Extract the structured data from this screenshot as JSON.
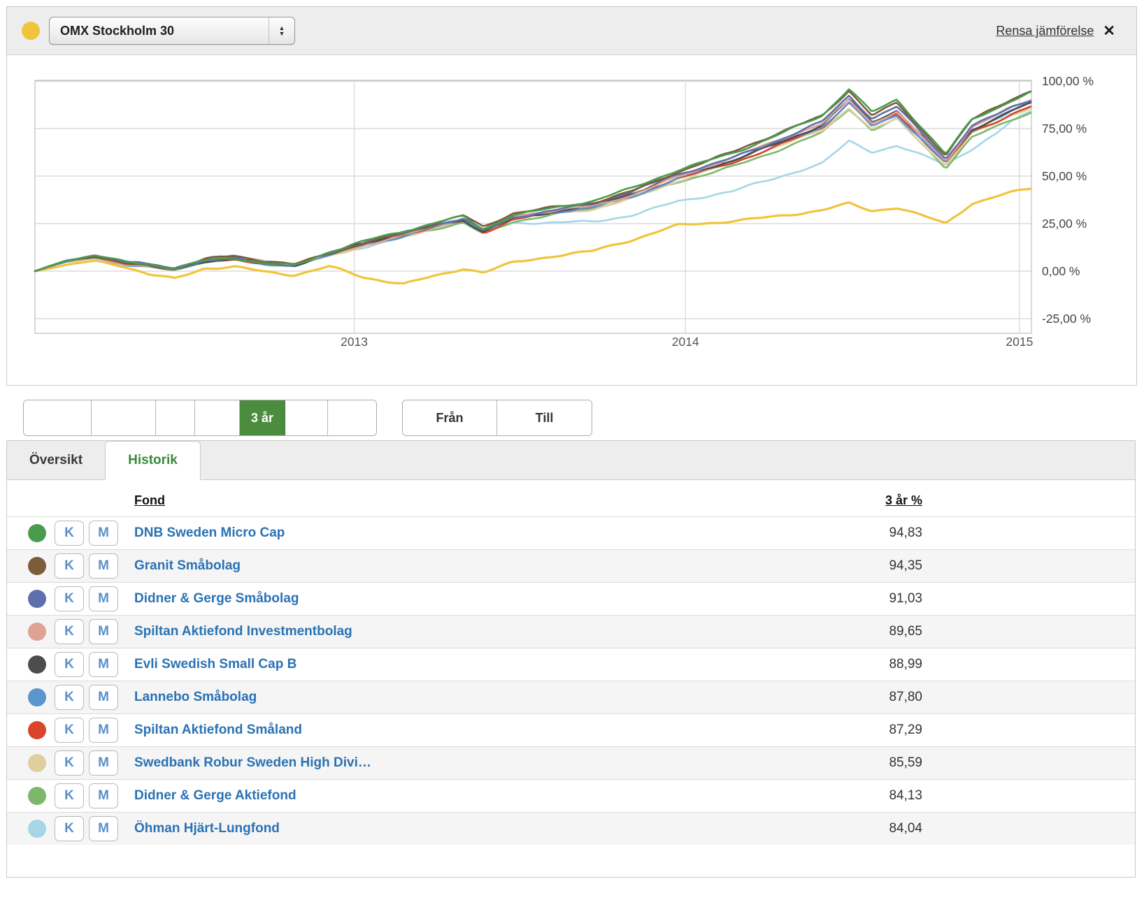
{
  "header": {
    "index_color": "#f0c43c",
    "index_select_value": "OMX Stockholm 30",
    "clear_comparison_label": "Rensa jämförelse",
    "close_icon": "✕"
  },
  "chart_data": {
    "type": "line",
    "y_ticks": [
      {
        "v": 100,
        "label": "100,00 %"
      },
      {
        "v": 75,
        "label": "75,00 %"
      },
      {
        "v": 50,
        "label": "50,00 %"
      },
      {
        "v": 25,
        "label": "25,00 %"
      },
      {
        "v": 0,
        "label": "0,00 %"
      },
      {
        "v": -25,
        "label": "-25,00 %"
      }
    ],
    "x_ticks": [
      {
        "f": 0.3204,
        "label": "2013"
      },
      {
        "f": 0.6528,
        "label": "2014"
      },
      {
        "f": 0.988,
        "label": "2015"
      }
    ],
    "ylim": [
      -32,
      106
    ],
    "x_anchors": [
      0,
      0.03,
      0.06,
      0.09,
      0.115,
      0.14,
      0.17,
      0.2,
      0.23,
      0.26,
      0.295,
      0.33,
      0.37,
      0.405,
      0.43,
      0.45,
      0.48,
      0.52,
      0.56,
      0.6,
      0.645,
      0.7,
      0.74,
      0.79,
      0.817,
      0.84,
      0.865,
      0.914,
      0.94,
      0.965,
      0.98,
      1.0
    ],
    "base_curve": [
      0,
      5,
      7.5,
      4,
      3,
      1,
      5.5,
      7,
      4.5,
      3,
      9,
      14,
      19,
      24,
      27,
      21,
      28,
      31,
      34,
      40,
      49,
      58,
      66,
      76,
      89,
      77,
      83,
      57,
      74,
      80,
      84,
      88
    ],
    "base_end": 88,
    "lag_profile": [
      0,
      0,
      0,
      0,
      0,
      0,
      0,
      0,
      0,
      0,
      0,
      0,
      0,
      0,
      0,
      0,
      2,
      4,
      6,
      8,
      10,
      14,
      15,
      16,
      16,
      10,
      13,
      -2,
      7,
      5,
      2,
      0
    ],
    "series": [
      {
        "name": "DNB Sweden Micro Cap",
        "color": "#4a9b4e",
        "end_value": 94.83
      },
      {
        "name": "Granit Småbolag",
        "color": "#7d5c3a",
        "end_value": 94.35
      },
      {
        "name": "Didner & Gerge Småbolag",
        "color": "#5f6fae",
        "end_value": 91.03
      },
      {
        "name": "Spiltan Aktiefond Investmentbolag",
        "color": "#dfa294",
        "end_value": 89.65
      },
      {
        "name": "Evli Swedish Small Cap B",
        "color": "#4d4d4d",
        "end_value": 88.99
      },
      {
        "name": "Lannebo Småbolag",
        "color": "#5b94cf",
        "end_value": 87.8
      },
      {
        "name": "Spiltan Aktiefond Småland",
        "color": "#d9442a",
        "end_value": 87.29
      },
      {
        "name": "Swedbank Robur Sweden High Divi…",
        "color": "#ddd09e",
        "end_value": 85.59
      },
      {
        "name": "Didner & Gerge Aktiefond",
        "color": "#7cb86c",
        "end_value": 84.13
      },
      {
        "name": "Öhman Hjärt-Lungfond",
        "color": "#a5d6e8",
        "end_value": 84.04,
        "lag": true
      },
      {
        "name": "OMX Stockholm 30",
        "color": "#f0c43c",
        "end_value": 44.0,
        "is_index": true,
        "values": [
          0,
          3,
          5,
          2,
          -2,
          -4,
          2,
          3,
          0,
          -2,
          2,
          -4,
          -7,
          -2,
          2,
          0,
          5,
          8,
          10,
          16,
          24,
          27,
          29,
          32,
          35,
          31,
          33,
          25,
          36,
          40,
          42,
          44
        ]
      }
    ]
  },
  "range_controls": {
    "segments": [
      "",
      "",
      "",
      "",
      "3 år",
      "",
      ""
    ],
    "active_index": 4,
    "active_color": "#4c8c3f",
    "from_label": "Från",
    "to_label": "Till"
  },
  "tabs": [
    {
      "label": "Översikt",
      "active": false
    },
    {
      "label": "Historik",
      "active": true
    }
  ],
  "table": {
    "columns": [
      "Fond",
      "3 år %"
    ],
    "row_buttons": [
      "K",
      "M"
    ],
    "rows": [
      {
        "color": "#4a9b4e",
        "name": "DNB Sweden Micro Cap",
        "value": "94,83"
      },
      {
        "color": "#7d5c3a",
        "name": "Granit Småbolag",
        "value": "94,35"
      },
      {
        "color": "#5f6fae",
        "name": "Didner & Gerge Småbolag",
        "value": "91,03"
      },
      {
        "color": "#dfa294",
        "name": "Spiltan Aktiefond Investmentbolag",
        "value": "89,65"
      },
      {
        "color": "#4d4d4d",
        "name": "Evli Swedish Small Cap B",
        "value": "88,99"
      },
      {
        "color": "#5b94cf",
        "name": "Lannebo Småbolag",
        "value": "87,80"
      },
      {
        "color": "#d9442a",
        "name": "Spiltan Aktiefond Småland",
        "value": "87,29"
      },
      {
        "color": "#ddd09e",
        "name": "Swedbank Robur Sweden High Divi…",
        "value": "85,59"
      },
      {
        "color": "#7cb86c",
        "name": "Didner & Gerge Aktiefond",
        "value": "84,13"
      },
      {
        "color": "#a5d6e8",
        "name": "Öhman Hjärt-Lungfond",
        "value": "84,04"
      }
    ]
  }
}
